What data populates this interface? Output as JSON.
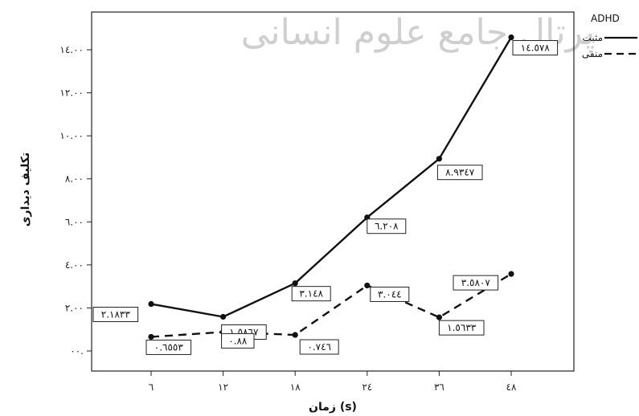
{
  "chart_data": {
    "type": "line",
    "title": "",
    "xlabel": "زمان (s)",
    "ylabel": "تکلیف دیداری",
    "watermark": "پرتال جامع علوم انسانی",
    "categories": [
      "٦",
      "١٢",
      "١٨",
      "٢٤",
      "٣٦",
      "٤٨"
    ],
    "x": [
      6,
      12,
      18,
      24,
      36,
      48
    ],
    "ylim": [
      -0.5,
      15.5
    ],
    "yticks": [
      0,
      2,
      4,
      6,
      8,
      10,
      12,
      14
    ],
    "ytick_labels": [
      "٠٠.",
      "٢.٠٠",
      "٤.٠٠",
      "٦.٠٠",
      "٨.٠٠",
      "١٠.٠٠",
      "١٢.٠٠",
      "١٤.٠٠"
    ],
    "grid": false,
    "legend": {
      "position": "top-right",
      "title": "ADHD"
    },
    "series": [
      {
        "name": "مثبت",
        "style": "solid",
        "color": "#111111",
        "values": [
          2.1833,
          1.5867,
          3.148,
          6.208,
          8.9347,
          14.578
        ],
        "labels": [
          "٢.١٨٣٣",
          "١.٥٨٦٧",
          "٣.١٤٨",
          "٦.٢٠٨",
          "٨.٩٣٤٧",
          "١٤.٥٧٨"
        ]
      },
      {
        "name": "منفی",
        "style": "dashed",
        "color": "#111111",
        "values": [
          0.6553,
          0.88,
          0.746,
          3.044,
          1.5633,
          3.5807
        ],
        "labels": [
          "٠.٦٥٥٣",
          "٠.٨٨",
          "٠.٧٤٦",
          "٣.٠٤٤",
          "١.٥٦٣٣",
          "٣.٥٨٠٧"
        ]
      }
    ]
  }
}
